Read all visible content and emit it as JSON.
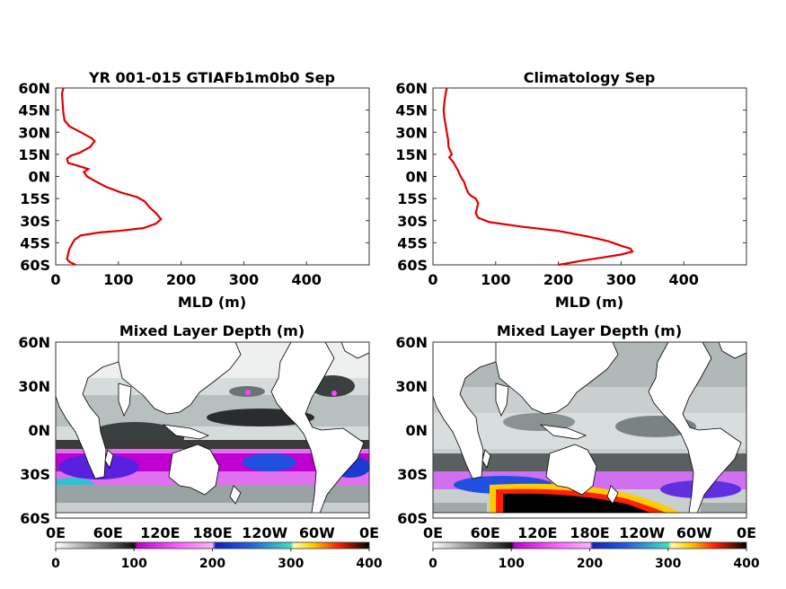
{
  "figure": {
    "panels": [
      {
        "title": "YR 001-015 GTIAFb1m0b0 Sep"
      },
      {
        "title": "Climatology Sep"
      },
      {
        "title": "Mixed Layer Depth (m)"
      },
      {
        "title": "Mixed Layer Depth (m)"
      }
    ]
  },
  "chart_data": [
    {
      "type": "line",
      "title": "YR 001-015 GTIAFb1m0b0 Sep",
      "xlabel": "MLD (m)",
      "ylabel": "",
      "xlim": [
        0,
        500
      ],
      "ylim": [
        -60,
        60
      ],
      "x_ticks": [
        "0",
        "100",
        "200",
        "300",
        "400"
      ],
      "y_ticks": [
        "60N",
        "45N",
        "30N",
        "15N",
        "0N",
        "15S",
        "30S",
        "45S",
        "60S"
      ],
      "series": [
        {
          "color": "#e00000",
          "points": [
            [
              12,
              60
            ],
            [
              10,
              56
            ],
            [
              11,
              50
            ],
            [
              12,
              44
            ],
            [
              14,
              38
            ],
            [
              22,
              34
            ],
            [
              40,
              30
            ],
            [
              57,
              26
            ],
            [
              62,
              24
            ],
            [
              55,
              20
            ],
            [
              38,
              16
            ],
            [
              24,
              14
            ],
            [
              18,
              12
            ],
            [
              20,
              9
            ],
            [
              30,
              8
            ],
            [
              45,
              6
            ],
            [
              52,
              5
            ],
            [
              45,
              3
            ],
            [
              50,
              0
            ],
            [
              62,
              -3
            ],
            [
              80,
              -7
            ],
            [
              105,
              -11
            ],
            [
              130,
              -14
            ],
            [
              142,
              -17
            ],
            [
              150,
              -21
            ],
            [
              160,
              -25
            ],
            [
              166,
              -28
            ],
            [
              168,
              -29
            ],
            [
              160,
              -32
            ],
            [
              140,
              -35
            ],
            [
              100,
              -37
            ],
            [
              70,
              -38
            ],
            [
              40,
              -40
            ],
            [
              30,
              -43
            ],
            [
              26,
              -46
            ],
            [
              22,
              -49
            ],
            [
              20,
              -52
            ],
            [
              18,
              -56
            ],
            [
              22,
              -58
            ],
            [
              32,
              -60
            ]
          ]
        }
      ]
    },
    {
      "type": "line",
      "title": "Climatology Sep",
      "xlabel": "MLD (m)",
      "ylabel": "",
      "xlim": [
        0,
        500
      ],
      "ylim": [
        -60,
        60
      ],
      "x_ticks": [
        "0",
        "100",
        "200",
        "300",
        "400"
      ],
      "y_ticks": [
        "60N",
        "45N",
        "30N",
        "15N",
        "0N",
        "15S",
        "30S",
        "45S",
        "60S"
      ],
      "series": [
        {
          "color": "#e00000",
          "points": [
            [
              22,
              60
            ],
            [
              20,
              56
            ],
            [
              18,
              50
            ],
            [
              17,
              45
            ],
            [
              18,
              40
            ],
            [
              20,
              35
            ],
            [
              22,
              30
            ],
            [
              24,
              25
            ],
            [
              25,
              20
            ],
            [
              30,
              15
            ],
            [
              26,
              13
            ],
            [
              32,
              10
            ],
            [
              36,
              7
            ],
            [
              40,
              4
            ],
            [
              44,
              0
            ],
            [
              50,
              -4
            ],
            [
              52,
              -7
            ],
            [
              56,
              -11
            ],
            [
              60,
              -13
            ],
            [
              68,
              -15
            ],
            [
              72,
              -18
            ],
            [
              70,
              -22
            ],
            [
              68,
              -25
            ],
            [
              72,
              -28
            ],
            [
              90,
              -31
            ],
            [
              140,
              -34
            ],
            [
              200,
              -37
            ],
            [
              250,
              -41
            ],
            [
              280,
              -44
            ],
            [
              300,
              -47
            ],
            [
              315,
              -49
            ],
            [
              318,
              -51
            ],
            [
              300,
              -53
            ],
            [
              270,
              -55
            ],
            [
              240,
              -57
            ],
            [
              200,
              -60
            ]
          ]
        }
      ]
    },
    {
      "type": "heatmap",
      "title": "Mixed Layer Depth (m)",
      "xlabel": "",
      "ylabel": "",
      "x_ticks": [
        "0E",
        "60E",
        "120E",
        "180E",
        "120W",
        "60W",
        "0E"
      ],
      "y_ticks": [
        "60N",
        "30N",
        "0N",
        "30S",
        "60S"
      ],
      "colorbar": {
        "min": 0,
        "max": 400,
        "ticks": [
          "0",
          "100",
          "200",
          "300",
          "400"
        ]
      }
    },
    {
      "type": "heatmap",
      "title": "Mixed Layer Depth (m)",
      "xlabel": "",
      "ylabel": "",
      "x_ticks": [
        "0E",
        "60E",
        "120E",
        "180E",
        "120W",
        "60W",
        "0E"
      ],
      "y_ticks": [
        "60N",
        "30N",
        "0N",
        "30S",
        "60S"
      ],
      "colorbar": {
        "min": 0,
        "max": 400,
        "ticks": [
          "0",
          "100",
          "200",
          "300",
          "400"
        ]
      }
    }
  ]
}
